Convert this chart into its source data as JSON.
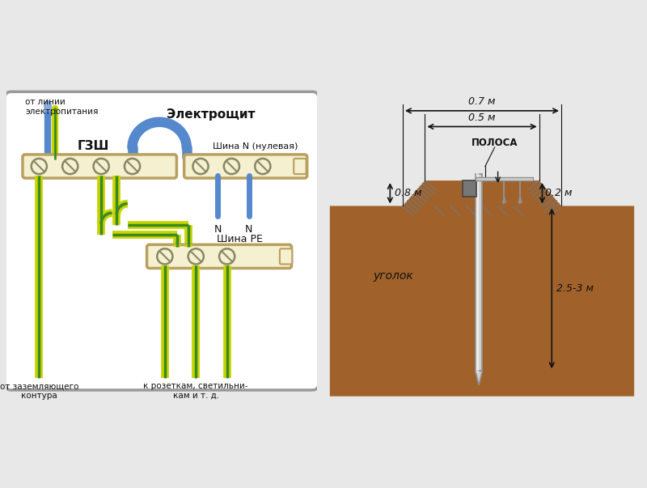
{
  "bg_color": "#e8e8e8",
  "title_elektroschit": "Электрощит",
  "label_gzsh": "ГЗШ",
  "label_shina_n": "Шина N (нулевая)",
  "label_shina_pe": "Шина PE",
  "label_from_ground": "от заземляющего\nконтура",
  "label_to_sockets": "к розеткам, светильни-\nкам и т. д.",
  "dim_07": "0.7 м",
  "dim_05": "0.5 м",
  "label_polosa": "ПОЛОСА",
  "dim_08": "0.8 м",
  "dim_02": "0.2 м",
  "label_ugolok": "уголок",
  "dim_25_3": "2.5-3 м",
  "color_yg": "#c8d400",
  "color_green": "#3a8a22",
  "color_blue": "#5588cc",
  "color_blue_light": "#88aadd",
  "color_bus": "#f5f0d0",
  "color_bus_border": "#b8a060",
  "color_dirt": "#a0622a",
  "color_steel": "#d0d0d0",
  "color_steel_dark": "#909090",
  "color_black": "#111111",
  "color_gray": "#888888"
}
